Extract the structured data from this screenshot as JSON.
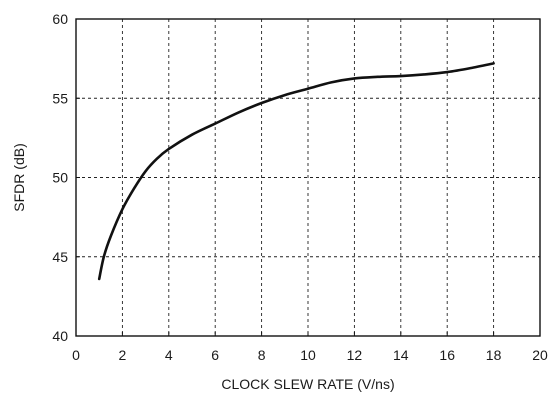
{
  "chart_data": {
    "type": "line",
    "xlabel": "CLOCK SLEW RATE (V/ns)",
    "ylabel": "SFDR (dB)",
    "xlim": [
      0,
      20
    ],
    "ylim": [
      40,
      60
    ],
    "xticks": [
      0,
      2,
      4,
      6,
      8,
      10,
      12,
      14,
      16,
      18,
      20
    ],
    "yticks": [
      40,
      45,
      50,
      55,
      60
    ],
    "grid": "dashed",
    "series": [
      {
        "x": [
          1.0,
          1.2,
          1.5,
          2.0,
          2.5,
          3.0,
          3.5,
          4.0,
          5.0,
          6.0,
          7.0,
          8.0,
          9.0,
          10.0,
          11.0,
          12.0,
          13.0,
          14.0,
          15.0,
          16.0,
          17.0,
          18.0
        ],
        "y": [
          43.6,
          45.0,
          46.3,
          48.0,
          49.3,
          50.4,
          51.2,
          51.8,
          52.7,
          53.4,
          54.1,
          54.7,
          55.2,
          55.6,
          56.0,
          56.25,
          56.35,
          56.4,
          56.5,
          56.65,
          56.9,
          57.2
        ],
        "color": "#111111"
      }
    ]
  }
}
